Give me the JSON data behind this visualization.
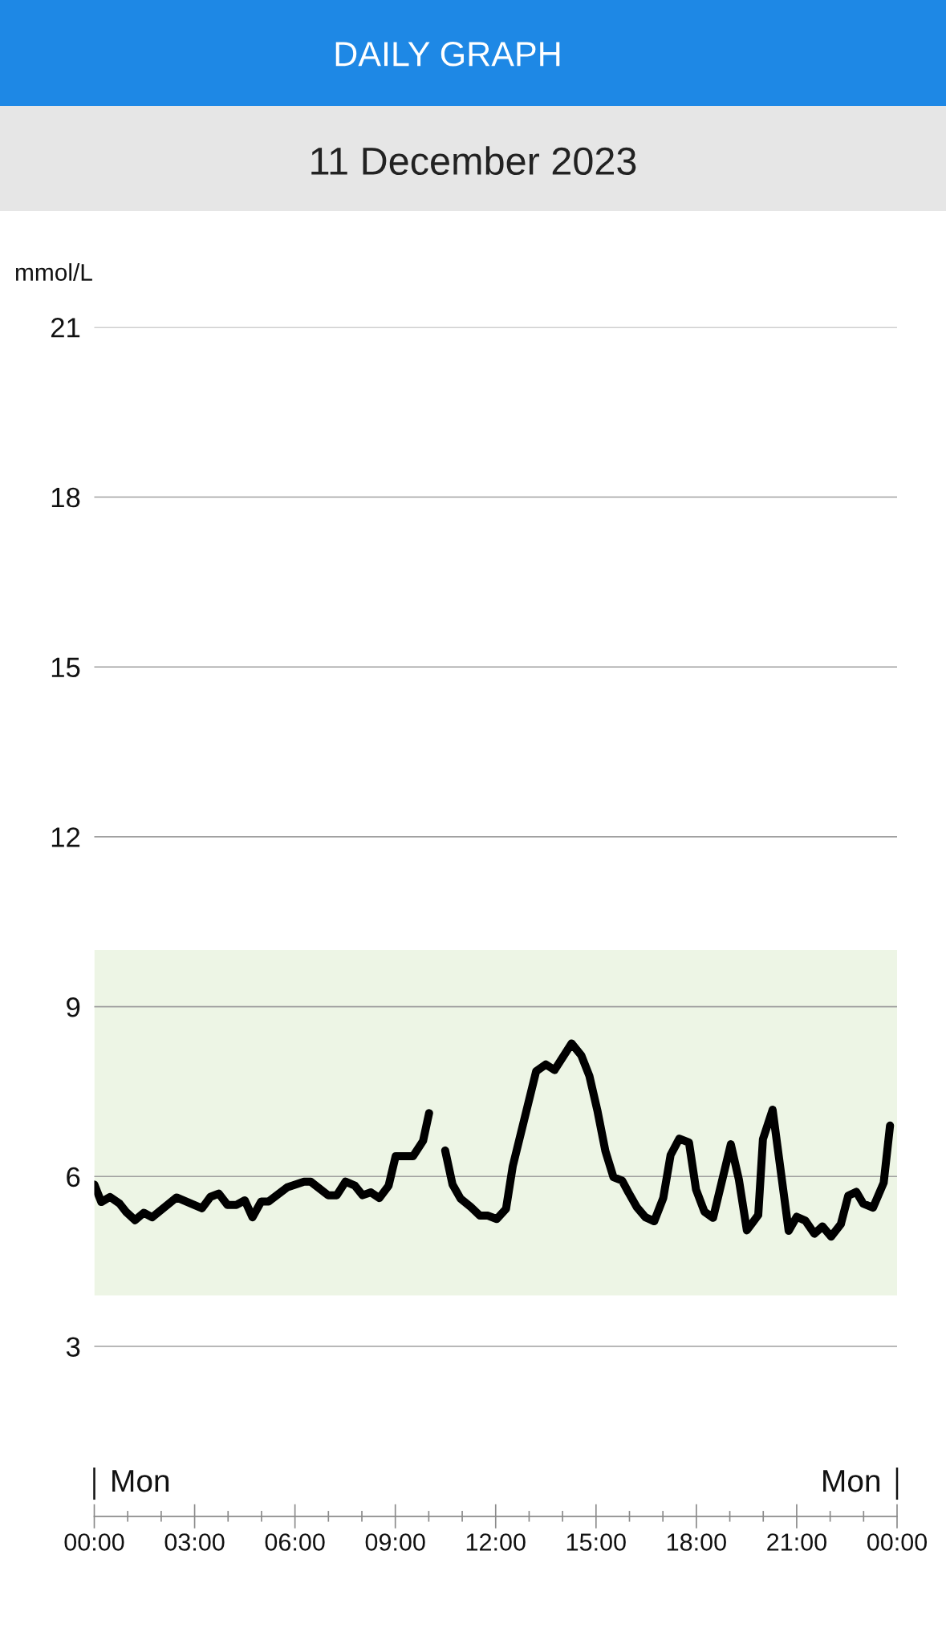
{
  "chart_data": {
    "type": "line",
    "title": "DAILY GRAPH",
    "subtitle": "11 December 2023",
    "ylabel": "mmol/L",
    "x": [
      0,
      0.21,
      0.47,
      0.76,
      0.96,
      1.22,
      1.48,
      1.73,
      2.46,
      3.22,
      3.47,
      3.72,
      3.98,
      4.25,
      4.5,
      4.73,
      4.99,
      5.21,
      5.77,
      6.27,
      6.47,
      6.99,
      7.25,
      7.51,
      7.79,
      8.02,
      8.27,
      8.52,
      8.8,
      9.01,
      9.53,
      9.83,
      10.01,
      10.25,
      10.49,
      10.71,
      10.95,
      11.26,
      11.53,
      11.77,
      12.03,
      12.31,
      12.51,
      13.21,
      13.5,
      13.76,
      14.27,
      14.56,
      14.8,
      15.04,
      15.28,
      15.52,
      15.78,
      15.97,
      16.22,
      16.48,
      16.74,
      17.01,
      17.23,
      17.49,
      17.78,
      17.99,
      18.24,
      18.5,
      19.03,
      19.27,
      19.51,
      19.85,
      19.99,
      20.28,
      20.76,
      21.0,
      21.26,
      21.53,
      21.77,
      22.03,
      22.32,
      22.54,
      22.78,
      22.99,
      23.28,
      23.6,
      23.79
    ],
    "series": [
      {
        "color": "#000000",
        "values": [
          5.86,
          5.55,
          5.64,
          5.52,
          5.37,
          5.23,
          5.36,
          5.28,
          5.63,
          5.44,
          5.64,
          5.7,
          5.5,
          5.5,
          5.58,
          5.28,
          5.56,
          5.56,
          5.81,
          5.91,
          5.91,
          5.67,
          5.67,
          5.91,
          5.84,
          5.67,
          5.72,
          5.62,
          5.84,
          6.36,
          6.36,
          6.63,
          7.12,
          null,
          6.46,
          5.86,
          5.61,
          5.46,
          5.31,
          5.31,
          5.25,
          5.43,
          6.18,
          7.86,
          7.98,
          7.88,
          8.35,
          8.14,
          7.78,
          7.17,
          6.45,
          5.99,
          5.93,
          5.72,
          5.46,
          5.28,
          5.21,
          5.62,
          6.38,
          6.67,
          6.6,
          5.77,
          5.38,
          5.27,
          6.57,
          5.95,
          5.05,
          5.32,
          6.66,
          7.18,
          5.04,
          5.29,
          5.22,
          4.99,
          5.12,
          4.94,
          5.16,
          5.66,
          5.73,
          5.52,
          5.45,
          5.89,
          6.9
        ]
      }
    ],
    "xlim": [
      0,
      24
    ],
    "xticks": [
      {
        "value": 0,
        "label": "00:00"
      },
      {
        "value": 1,
        "label": null
      },
      {
        "value": 2,
        "label": null
      },
      {
        "value": 3,
        "label": "03:00"
      },
      {
        "value": 4,
        "label": null
      },
      {
        "value": 5,
        "label": null
      },
      {
        "value": 6,
        "label": "06:00"
      },
      {
        "value": 7,
        "label": null
      },
      {
        "value": 8,
        "label": null
      },
      {
        "value": 9,
        "label": "09:00"
      },
      {
        "value": 10,
        "label": null
      },
      {
        "value": 11,
        "label": null
      },
      {
        "value": 12,
        "label": "12:00"
      },
      {
        "value": 13,
        "label": null
      },
      {
        "value": 14,
        "label": null
      },
      {
        "value": 15,
        "label": "15:00"
      },
      {
        "value": 16,
        "label": null
      },
      {
        "value": 17,
        "label": null
      },
      {
        "value": 18,
        "label": "18:00"
      },
      {
        "value": 19,
        "label": null
      },
      {
        "value": 20,
        "label": null
      },
      {
        "value": 21,
        "label": "21:00"
      },
      {
        "value": 22,
        "label": null
      },
      {
        "value": 23,
        "label": null
      },
      {
        "value": 24,
        "label": "00:00"
      }
    ],
    "ylim": [
      0,
      21
    ],
    "yticks": [
      3,
      6,
      9,
      12,
      15,
      18,
      21
    ],
    "grid": "y",
    "bands": [
      {
        "axis": "y",
        "from": 3.9,
        "to": 10,
        "color": "#edf5e5"
      }
    ],
    "annotations": [
      "Mon",
      "Mon"
    ]
  }
}
